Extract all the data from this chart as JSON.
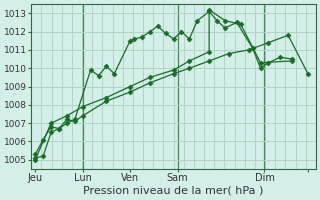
{
  "xlabel": "Pression niveau de la mer( hPa )",
  "bg_color": "#d4eee8",
  "plot_bg_color": "#d4eee8",
  "grid_color": "#b0d4c8",
  "line_color": "#1a6b2a",
  "vline_color": "#4a8a5a",
  "ylim": [
    1004.5,
    1013.5
  ],
  "yticks": [
    1005,
    1006,
    1007,
    1008,
    1009,
    1010,
    1011,
    1012,
    1013
  ],
  "xlim": [
    -0.2,
    14.2
  ],
  "line1_x": [
    0.0,
    0.4,
    0.8,
    1.2,
    1.6,
    2.0,
    2.8,
    3.2,
    3.6,
    4.0,
    4.8,
    5.0,
    5.4,
    5.8,
    6.2,
    6.6,
    7.0,
    7.4,
    7.8,
    8.2,
    8.8,
    9.2,
    9.6,
    10.2,
    11.0,
    11.4,
    11.8,
    12.4,
    13.0
  ],
  "line1_y": [
    1005.1,
    1005.2,
    1006.5,
    1006.7,
    1007.0,
    1007.2,
    1009.9,
    1009.6,
    1010.1,
    1009.7,
    1011.5,
    1011.6,
    1011.7,
    1012.0,
    1012.3,
    1011.9,
    1011.6,
    1012.0,
    1011.6,
    1012.6,
    1013.1,
    1012.6,
    1012.2,
    1012.5,
    1011.1,
    1010.0,
    1010.3,
    1010.6,
    1010.5
  ],
  "line2_x": [
    0.0,
    0.4,
    0.8,
    1.2,
    1.6,
    2.0,
    2.4,
    3.6,
    4.8,
    5.8,
    7.0,
    7.8,
    8.8,
    9.8,
    10.8,
    11.8,
    12.8,
    13.8
  ],
  "line2_y": [
    1005.3,
    1006.1,
    1006.8,
    1006.7,
    1007.2,
    1007.1,
    1007.4,
    1008.2,
    1008.7,
    1009.2,
    1009.7,
    1010.0,
    1010.4,
    1010.8,
    1011.0,
    1011.4,
    1011.8,
    1009.7
  ],
  "line3_x": [
    0.0,
    0.8,
    1.6,
    2.4,
    3.6,
    4.8,
    5.8,
    7.0,
    7.8,
    8.8,
    8.8,
    9.6,
    10.4,
    11.4,
    13.0
  ],
  "line3_y": [
    1005.0,
    1007.0,
    1007.4,
    1007.9,
    1008.4,
    1009.0,
    1009.5,
    1009.9,
    1010.4,
    1010.9,
    1013.2,
    1012.6,
    1012.4,
    1010.3,
    1010.4
  ],
  "vlines_x": [
    2.4,
    7.2,
    11.6
  ],
  "tick_x_positions": [
    0.0,
    2.4,
    4.8,
    7.2,
    11.6,
    13.8
  ],
  "tick_x_labels": [
    "Jeu",
    "Lun",
    "Ven",
    "Sam",
    "Dim",
    ""
  ],
  "xlabel_fontsize": 8,
  "ytick_fontsize": 6.5,
  "xtick_fontsize": 7
}
